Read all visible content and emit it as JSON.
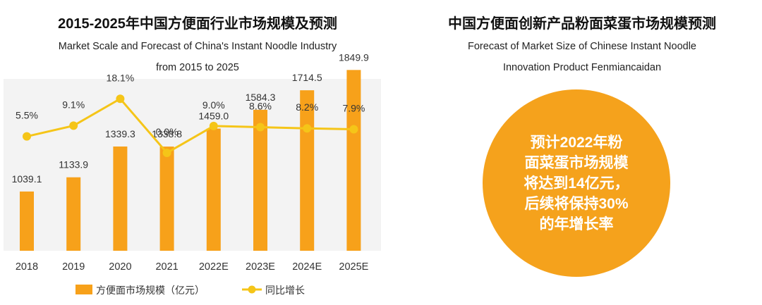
{
  "left_panel": {
    "title": "2015-2025年中国方便面行业市场规模及预测",
    "subtitle_line1": "Market Scale and Forecast of China's Instant Noodle Industry",
    "subtitle_line2": "from 2015 to 2025"
  },
  "right_panel": {
    "title": "中国方便面创新产品粉面菜蛋市场规模预测",
    "subtitle_line1": "Forecast of Market Size of Chinese Instant Noodle",
    "subtitle_line2": "Innovation Product Fenmiancaidan",
    "circle_line1": "预计2022年粉",
    "circle_line2": "面菜蛋市场规模",
    "circle_line3": "将达到14亿元，",
    "circle_line4": "后续将保持30%",
    "circle_line5": "的年增长率"
  },
  "colors": {
    "bar": "#f7a11a",
    "line": "#f5c518",
    "circle": "#f5a21c",
    "plot_bg": "#f3f3f3"
  },
  "chart_data": {
    "type": "bar",
    "categories": [
      "2018",
      "2019",
      "2020",
      "2021",
      "2022E",
      "2023E",
      "2024E",
      "2025E"
    ],
    "series": [
      {
        "name": "方便面市场规模（亿元）",
        "type": "bar",
        "values": [
          1039.1,
          1133.9,
          1339.3,
          1338.8,
          1459.0,
          1584.3,
          1714.5,
          1849.9
        ],
        "labels": [
          "1039.1",
          "1133.9",
          "1339.3",
          "1338.8",
          "1459.0",
          "1584.3",
          "1714.5",
          "1849.9"
        ]
      },
      {
        "name": "同比增长",
        "type": "line",
        "values": [
          5.5,
          9.1,
          18.1,
          0.0,
          9.0,
          8.6,
          8.2,
          7.9
        ],
        "labels": [
          "5.5%",
          "9.1%",
          "18.1%",
          "0.0%",
          "9.0%",
          "8.6%",
          "8.2%",
          "7.9%"
        ]
      }
    ],
    "legend_position": "bottom",
    "grid": false
  }
}
